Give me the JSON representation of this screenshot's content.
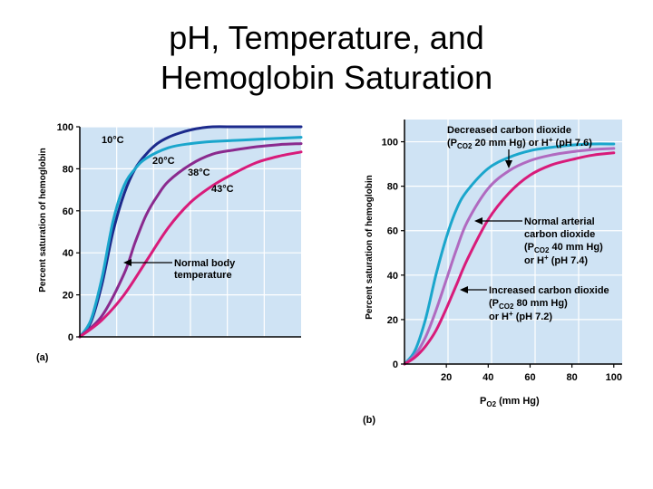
{
  "slide": {
    "title_line1": "pH, Temperature, and",
    "title_line2": "Hemoglobin Saturation"
  },
  "colors": {
    "plot_bg": "#cfe3f4",
    "grid": "#ffffff",
    "dark_blue": "#1c2a8c",
    "light_blue": "#1aa6cc",
    "purple": "#8a2a8e",
    "magenta": "#d81b7a",
    "light_purple": "#b06ac0"
  },
  "chart_data": [
    {
      "type": "line",
      "panel_label": "(a)",
      "ylabel": "Percent saturation of hemoglobin",
      "xlabel": "",
      "ylim": [
        0,
        100
      ],
      "y_ticks": [
        "100",
        "80",
        "60",
        "40",
        "20",
        "0"
      ],
      "grid": true,
      "series": [
        {
          "name": "10°C",
          "color": "#1c2a8c",
          "x": [
            0,
            5,
            10,
            15,
            20,
            25,
            30,
            35,
            40,
            45,
            50,
            55,
            60,
            70,
            80,
            100
          ],
          "y": [
            0,
            7,
            25,
            50,
            68,
            80,
            87,
            92,
            95,
            97,
            98.5,
            99.5,
            100,
            100,
            100,
            100
          ]
        },
        {
          "name": "20°C",
          "color": "#1aa6cc",
          "x": [
            0,
            5,
            10,
            15,
            20,
            25,
            30,
            40,
            50,
            60,
            80,
            100
          ],
          "y": [
            0,
            8,
            28,
            55,
            72,
            80,
            85,
            90,
            92,
            93,
            94,
            95
          ]
        },
        {
          "name": "38°C",
          "color": "#8a2a8e",
          "x": [
            0,
            10,
            20,
            25,
            30,
            35,
            40,
            50,
            60,
            70,
            80,
            90,
            100
          ],
          "y": [
            0,
            10,
            30,
            45,
            58,
            67,
            74,
            82,
            87,
            89,
            90.5,
            91.5,
            92
          ]
        },
        {
          "name": "43°C",
          "color": "#d81b7a",
          "x": [
            0,
            10,
            20,
            30,
            40,
            50,
            60,
            70,
            80,
            90,
            100
          ],
          "y": [
            0,
            8,
            20,
            36,
            52,
            64,
            72,
            78,
            83,
            86,
            88
          ]
        }
      ],
      "annotations": [
        {
          "text": "10°C"
        },
        {
          "text": "20°C"
        },
        {
          "text": "38°C"
        },
        {
          "text": "43°C"
        },
        {
          "text_lines": [
            "Normal body",
            "temperature"
          ]
        }
      ]
    },
    {
      "type": "line",
      "panel_label": "(b)",
      "ylabel": "Percent saturation of hemoglobin",
      "xlabel": "PO2 (mm Hg)",
      "xlim": [
        0,
        100
      ],
      "ylim": [
        0,
        110
      ],
      "x_ticks": [
        "20",
        "40",
        "60",
        "80",
        "100"
      ],
      "y_ticks": [
        "100",
        "80",
        "60",
        "40",
        "20",
        "0"
      ],
      "grid": true,
      "series": [
        {
          "name": "Decreased carbon dioxide (PCO2 20 mm Hg) or H+ (pH 7.6)",
          "color": "#1aa6cc",
          "x": [
            0,
            5,
            10,
            15,
            20,
            25,
            30,
            40,
            50,
            60,
            70,
            80,
            90,
            100
          ],
          "y": [
            0,
            6,
            20,
            40,
            57,
            70,
            78,
            88,
            93,
            96,
            97.5,
            98.5,
            99,
            99
          ]
        },
        {
          "name": "Normal arterial carbon dioxide (PCO2 40 mm Hg) or H+ (pH 7.4)",
          "color": "#b06ac0",
          "x": [
            0,
            5,
            10,
            15,
            20,
            25,
            30,
            40,
            50,
            60,
            70,
            80,
            90,
            100
          ],
          "y": [
            0,
            4,
            12,
            24,
            38,
            52,
            64,
            79,
            87,
            91.5,
            94,
            95.5,
            96.5,
            97
          ]
        },
        {
          "name": "Increased carbon dioxide (PCO2 80 mm Hg) or H+ (pH 7.2)",
          "color": "#d81b7a",
          "x": [
            0,
            5,
            10,
            15,
            20,
            25,
            30,
            40,
            50,
            60,
            70,
            80,
            90,
            100
          ],
          "y": [
            0,
            3,
            8,
            15,
            25,
            36,
            47,
            65,
            77,
            85,
            89.5,
            92,
            94,
            95
          ]
        }
      ]
    }
  ],
  "annotations_b": {
    "decreased_line1": "Decreased carbon dioxide",
    "decreased_line2_a": "(P",
    "decreased_line2_sub": "CO2",
    "decreased_line2_b": " 20 mm Hg) or H",
    "decreased_line2_sup": "+",
    "decreased_line2_c": " (pH 7.6)",
    "normal_line1": "Normal arterial",
    "normal_line2": "carbon dioxide",
    "normal_line3_a": "(P",
    "normal_line3_sub": "CO2",
    "normal_line3_b": " 40 mm Hg)",
    "normal_line4_a": "or H",
    "normal_line4_sup": "+",
    "normal_line4_b": " (pH 7.4)",
    "increased_line1": "Increased carbon dioxide",
    "increased_line2_a": "(P",
    "increased_line2_sub": "CO2",
    "increased_line2_b": " 80 mm Hg)",
    "increased_line3_a": "or H",
    "increased_line3_sup": "+",
    "increased_line3_b": " (pH 7.2)",
    "xlabel_main": "P",
    "xlabel_sub": "O2",
    "xlabel_rest": " (mm Hg)"
  }
}
